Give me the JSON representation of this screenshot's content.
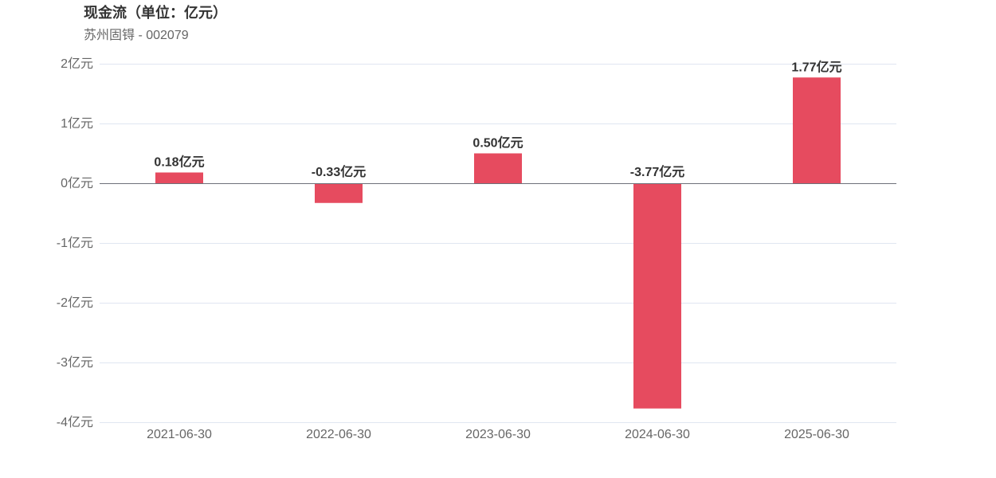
{
  "title": "现金流（单位：亿元）",
  "subtitle": "苏州固锝 - 002079",
  "chart_data": {
    "type": "bar",
    "title": "现金流（单位：亿元）",
    "subtitle": "苏州固锝 - 002079",
    "categories": [
      "2021-06-30",
      "2022-06-30",
      "2023-06-30",
      "2024-06-30",
      "2025-06-30"
    ],
    "values": [
      0.18,
      -0.33,
      0.5,
      -3.77,
      1.77
    ],
    "data_labels": [
      "0.18亿元",
      "-0.33亿元",
      "0.50亿元",
      "-3.77亿元",
      "1.77亿元"
    ],
    "unit": "亿元",
    "ylim": [
      -4,
      2
    ],
    "yticks": [
      2,
      1,
      0,
      -1,
      -2,
      -3,
      -4
    ],
    "ytick_labels": [
      "2亿元",
      "1亿元",
      "0亿元",
      "-1亿元",
      "-2亿元",
      "-3亿元",
      "-4亿元"
    ],
    "bar_color": "#e64b5f",
    "grid": true,
    "legend": "none"
  }
}
